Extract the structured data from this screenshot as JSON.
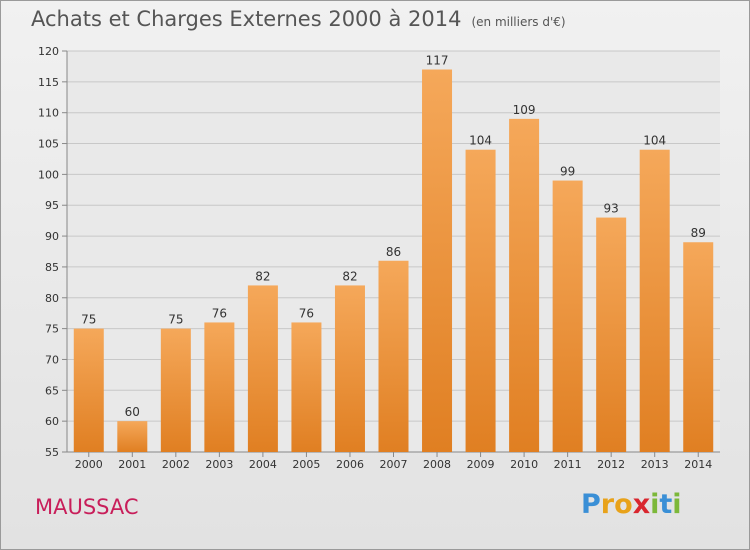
{
  "header": {
    "title": "Achats et Charges Externes 2000 à 2014",
    "subtitle": "(en milliers d'€)"
  },
  "footer": {
    "place": "MAUSSAC",
    "logo_letters": [
      "P",
      "r",
      "o",
      "x",
      "i",
      "t",
      "i"
    ],
    "logo_colors": [
      "#3a8fd6",
      "#e8a21a",
      "#e8a21a",
      "#d9262e",
      "#7cb83a",
      "#3a8fd6",
      "#7cb83a"
    ]
  },
  "chart_data": {
    "type": "bar",
    "title": "Achats et Charges Externes 2000 à 2014",
    "subtitle": "(en milliers d'€)",
    "categories": [
      "2000",
      "2001",
      "2002",
      "2003",
      "2004",
      "2005",
      "2006",
      "2007",
      "2008",
      "2009",
      "2010",
      "2011",
      "2012",
      "2013",
      "2014"
    ],
    "values": [
      75,
      60,
      75,
      76,
      82,
      76,
      82,
      86,
      117,
      104,
      109,
      99,
      93,
      104,
      89
    ],
    "ylim": [
      55,
      120
    ],
    "yticks": [
      55,
      60,
      65,
      70,
      75,
      80,
      85,
      90,
      95,
      100,
      105,
      110,
      115,
      120
    ],
    "grid": true,
    "bar_color_top": "#f5a85a",
    "bar_color_bottom": "#e07f22"
  }
}
